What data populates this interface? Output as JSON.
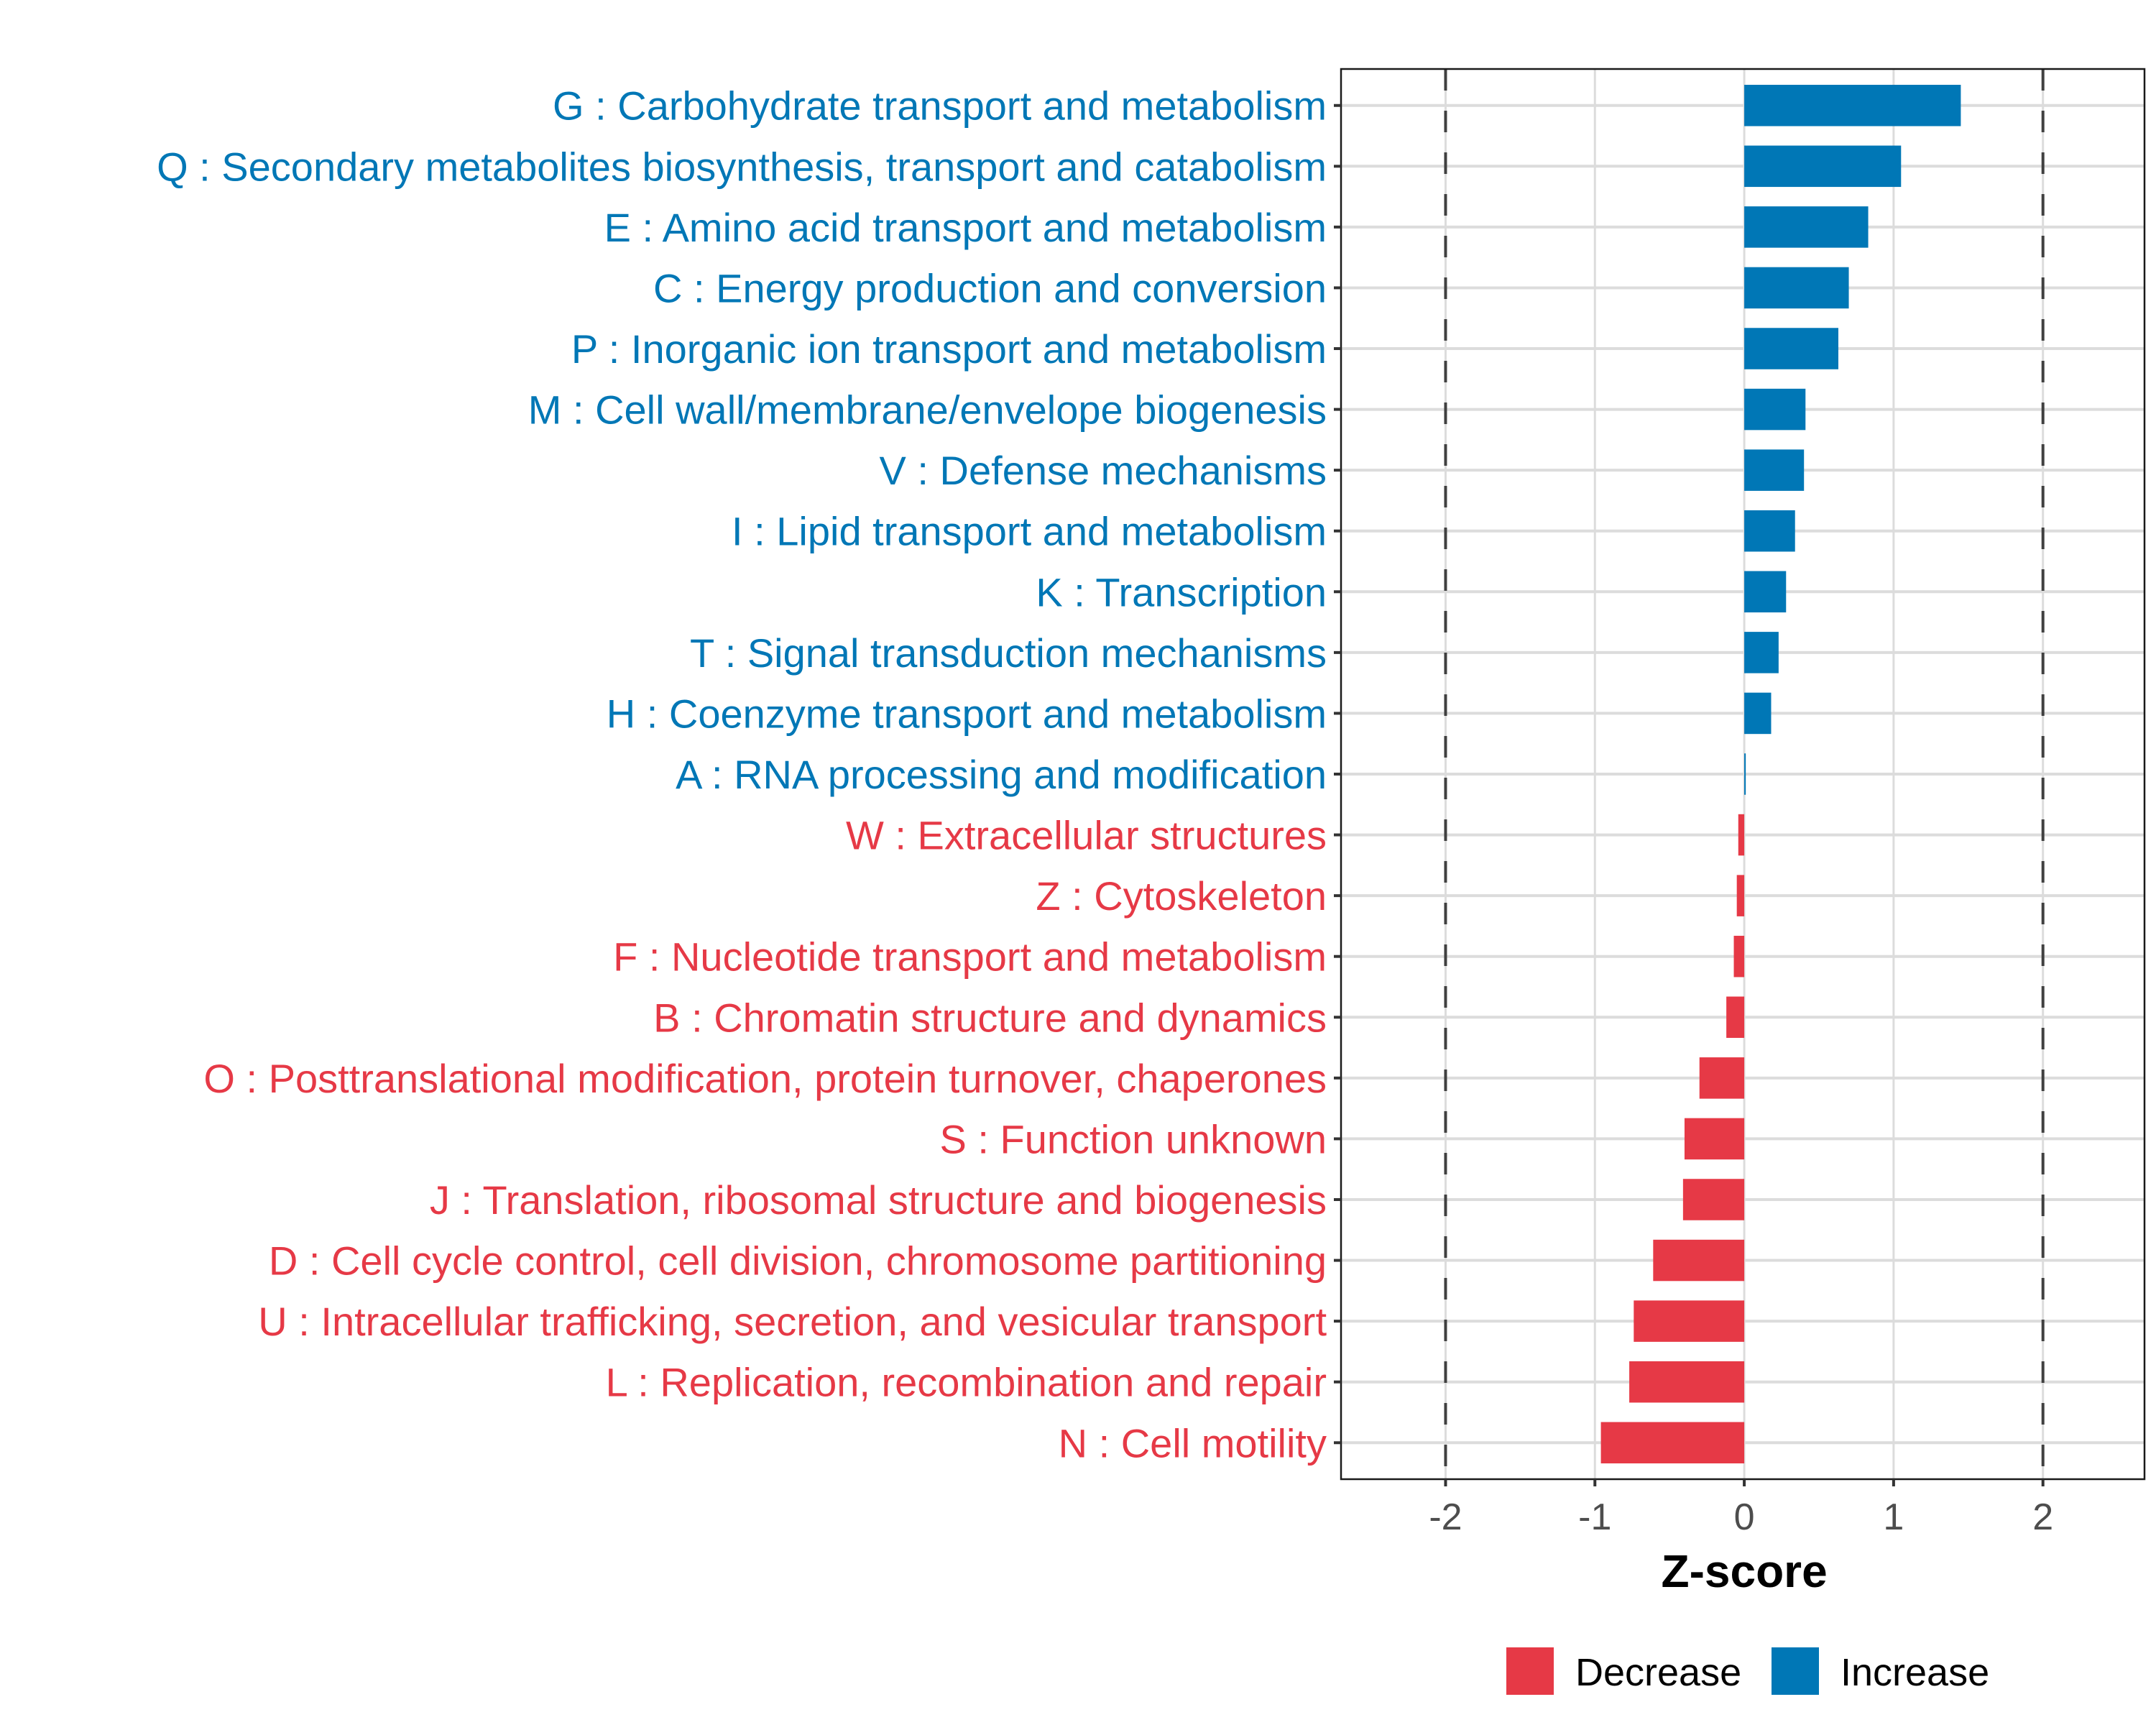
{
  "chart_data": {
    "type": "bar",
    "orientation": "horizontal",
    "title": "",
    "xlabel": "Z-score",
    "ylabel": "",
    "xlim": [
      -2.7,
      2.68
    ],
    "xticks": [
      -2,
      -1,
      0,
      1,
      2
    ],
    "xtick_labels": [
      "-2",
      "-1",
      "0",
      "1",
      "2"
    ],
    "reference_lines": [
      -2,
      2
    ],
    "grid": true,
    "legend": {
      "placement": "bottom",
      "entries": [
        {
          "label": "Decrease",
          "color": "#E63946"
        },
        {
          "label": "Increase",
          "color": "#0077B6"
        }
      ]
    },
    "colors": {
      "Increase": "#0077B6",
      "Decrease": "#E63946"
    },
    "categories": [
      "G : Carbohydrate transport and metabolism",
      "Q : Secondary metabolites biosynthesis, transport and catabolism",
      "E : Amino acid transport and metabolism",
      "C : Energy production and conversion",
      "P : Inorganic ion transport and metabolism",
      "M : Cell wall/membrane/envelope biogenesis",
      "V : Defense mechanisms",
      "I : Lipid transport and metabolism",
      "K : Transcription",
      "T : Signal transduction mechanisms",
      "H : Coenzyme transport and metabolism",
      "A : RNA processing and modification",
      "W : Extracellular structures",
      "Z : Cytoskeleton",
      "F : Nucleotide transport and metabolism",
      "B : Chromatin structure and dynamics",
      "O : Posttranslational modification, protein turnover, chaperones",
      "S : Function unknown",
      "J : Translation, ribosomal structure and biogenesis",
      "D : Cell cycle control, cell division, chromosome partitioning",
      "U : Intracellular trafficking, secretion, and vesicular transport",
      "L : Replication, recombination and repair",
      "N : Cell motility"
    ],
    "values": [
      1.45,
      1.05,
      0.83,
      0.7,
      0.63,
      0.41,
      0.4,
      0.34,
      0.28,
      0.23,
      0.18,
      0.01,
      -0.04,
      -0.05,
      -0.07,
      -0.12,
      -0.3,
      -0.4,
      -0.41,
      -0.61,
      -0.74,
      -0.77,
      -0.96
    ],
    "groups": [
      "Increase",
      "Increase",
      "Increase",
      "Increase",
      "Increase",
      "Increase",
      "Increase",
      "Increase",
      "Increase",
      "Increase",
      "Increase",
      "Increase",
      "Decrease",
      "Decrease",
      "Decrease",
      "Decrease",
      "Decrease",
      "Decrease",
      "Decrease",
      "Decrease",
      "Decrease",
      "Decrease",
      "Decrease"
    ]
  }
}
